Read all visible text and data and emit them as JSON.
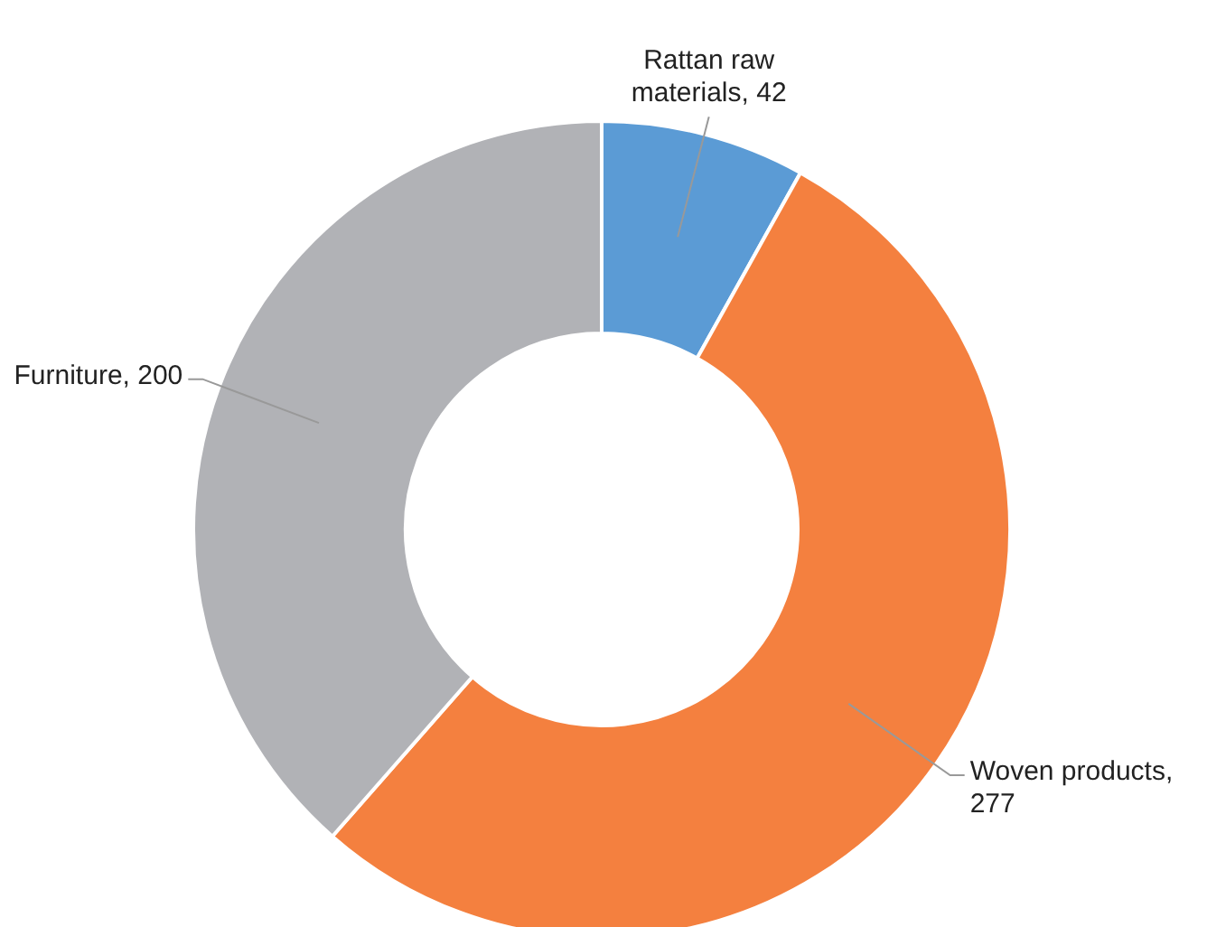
{
  "chart_data": {
    "type": "donut",
    "categories": [
      "Rattan raw materials",
      "Woven products",
      "Furniture"
    ],
    "values": [
      42,
      277,
      200
    ],
    "value_labels": [
      ", 42",
      ", 277",
      ", 200"
    ],
    "colors": [
      "#5b9bd5",
      "#f4803f",
      "#b1b2b6"
    ]
  }
}
